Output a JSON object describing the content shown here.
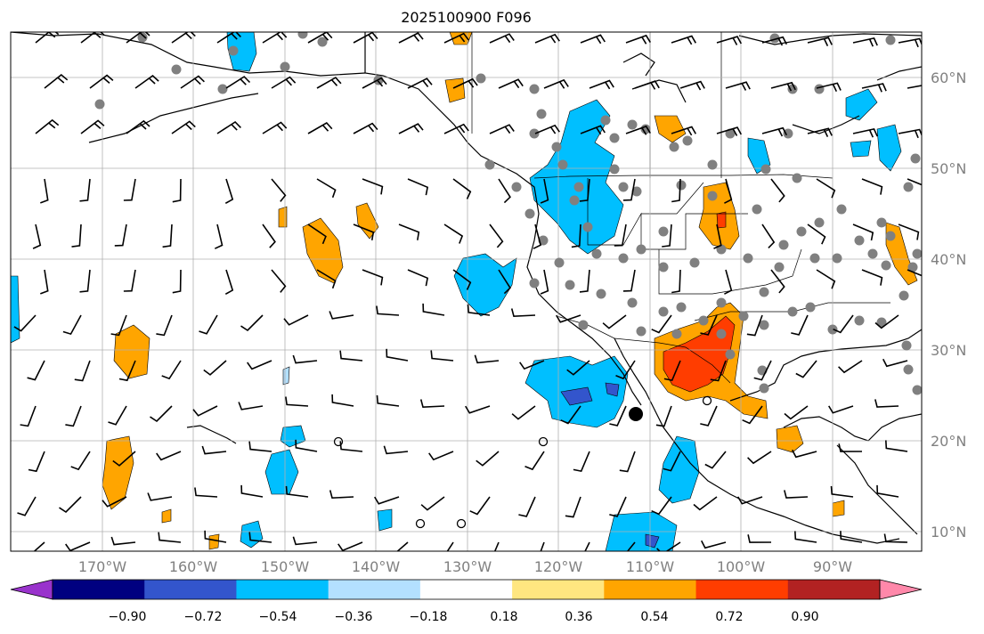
{
  "title": "2025100900 F096",
  "latitude_labels": [
    "60°N",
    "50°N",
    "40°N",
    "30°N",
    "20°N",
    "10°N"
  ],
  "longitude_labels": [
    "170°W",
    "160°W",
    "150°W",
    "140°W",
    "130°W",
    "120°W",
    "110°W",
    "100°W",
    "90°W"
  ],
  "colorbar": {
    "tick_labels": [
      "−0.90",
      "−0.72",
      "−0.54",
      "−0.36",
      "−0.18",
      "0.18",
      "0.36",
      "0.54",
      "0.72",
      "0.90"
    ],
    "colors": [
      "#9933cc",
      "#000080",
      "#3355cc",
      "#00bfff",
      "#b3e0ff",
      "#ffffff",
      "#ffe680",
      "#ffa500",
      "#ff3d00",
      "#b22222",
      "#ff88aa"
    ]
  },
  "colors": {
    "grid": "#b0b0b0",
    "coast": "#000000",
    "station": "#808080",
    "label": "#808080"
  }
}
